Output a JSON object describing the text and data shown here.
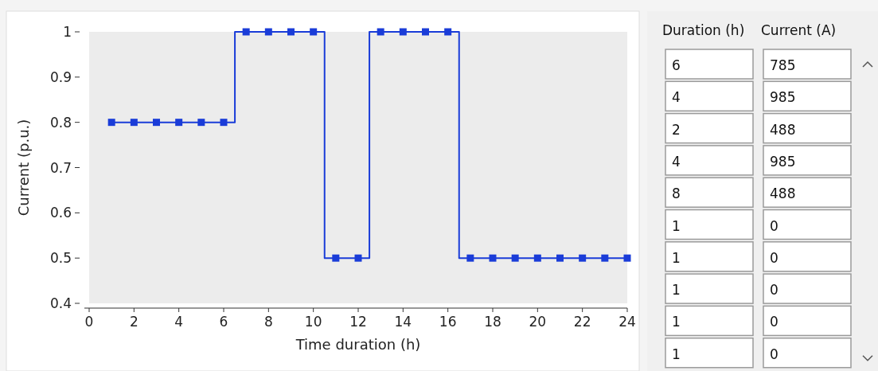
{
  "chart_data": [
    {
      "type": "step",
      "xlabel": "Time duration (h)",
      "ylabel": "Current (p.u.)",
      "x": [
        1,
        2,
        3,
        4,
        5,
        6,
        7,
        8,
        9,
        10,
        11,
        12,
        13,
        14,
        15,
        16,
        17,
        18,
        19,
        20,
        21,
        22,
        23,
        24
      ],
      "series": [
        {
          "color": "#1a3cd8",
          "values": [
            0.8,
            0.8,
            0.8,
            0.8,
            0.8,
            0.8,
            1,
            1,
            1,
            1,
            0.5,
            0.5,
            1,
            1,
            1,
            1,
            0.5,
            0.5,
            0.5,
            0.5,
            0.5,
            0.5,
            0.5,
            0.5
          ]
        }
      ],
      "xlim": [
        0,
        24
      ],
      "xticks": [
        0,
        2,
        4,
        6,
        8,
        10,
        12,
        14,
        16,
        18,
        20,
        22,
        24
      ],
      "ylim": [
        0.4,
        1
      ],
      "yticks": [
        0.4,
        0.5,
        0.6,
        0.7,
        0.8,
        0.9,
        1
      ],
      "grid": false,
      "marker": "square"
    },
    {
      "type": "other",
      "categories": [
        "Duration (h)",
        "Current (A)"
      ],
      "annotations": [
        "6",
        "785",
        "4",
        "985",
        "2",
        "488",
        "4",
        "985",
        "8",
        "488",
        "1",
        "0",
        "1",
        "0",
        "1",
        "0",
        "1",
        "0",
        "1",
        "0"
      ]
    }
  ]
}
